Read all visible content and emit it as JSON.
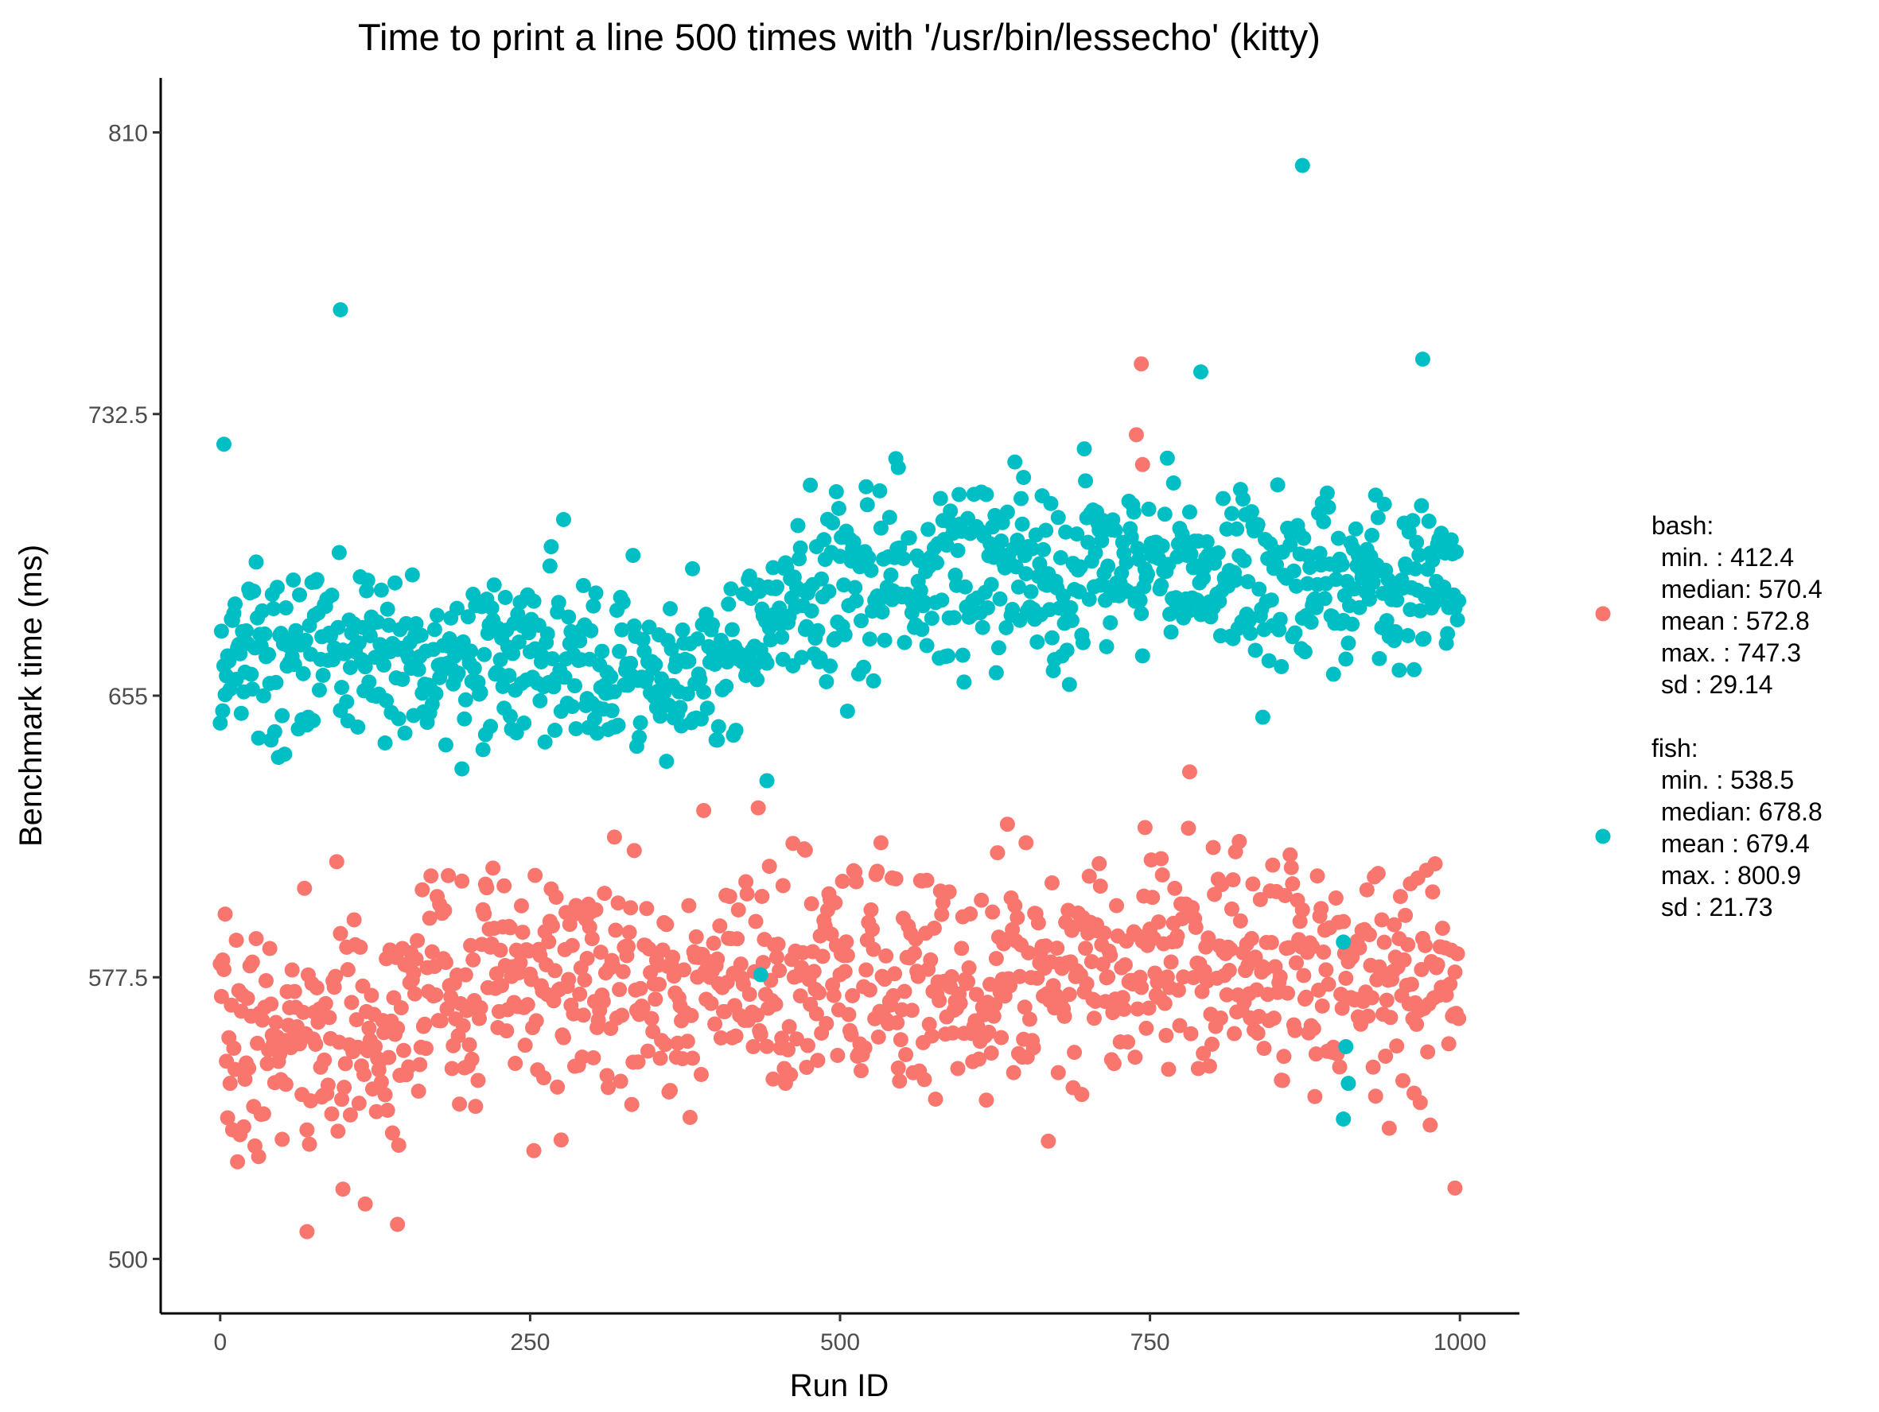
{
  "chart_data": {
    "type": "scatter",
    "title": "Time to print a line 500 times with '/usr/bin/lessecho' (kitty)",
    "xlabel": "Run ID",
    "ylabel": "Benchmark time (ms)",
    "xlim": [
      -48,
      1048
    ],
    "ylim": [
      485,
      825
    ],
    "x_ticks": [
      0,
      250,
      500,
      750,
      1000
    ],
    "y_ticks": [
      500,
      577.5,
      655,
      732.5,
      810
    ],
    "x_tick_labels": [
      "0",
      "250",
      "500",
      "750",
      "1000"
    ],
    "y_tick_labels": [
      "500",
      "577.5",
      "655",
      "732.5",
      "810"
    ],
    "legend_position": "right",
    "series": [
      {
        "name": "bash",
        "color": "#F8766D",
        "n": 1000,
        "seed": 7,
        "stats_lines": [
          "bash:",
          "min.    :  412.4",
          "median:   570.4",
          "mean   :  572.8",
          "max.     :  747.3",
          "sd       :  29.14"
        ],
        "trend": [
          [
            0,
            558
          ],
          [
            130,
            560
          ],
          [
            150,
            576
          ],
          [
            400,
            574
          ],
          [
            600,
            578
          ],
          [
            740,
            583
          ],
          [
            750,
            595
          ],
          [
            760,
            585
          ],
          [
            1000,
            575
          ]
        ],
        "noise_sd": 16,
        "highlight_points": [
          [
            70,
            507.5
          ],
          [
            143,
            509.5
          ],
          [
            743,
            746.3
          ],
          [
            739,
            726.8
          ],
          [
            744,
            718.6
          ],
          [
            996,
            519.5
          ]
        ]
      },
      {
        "name": "fish",
        "color": "#00BFC4",
        "n": 1000,
        "seed": 13,
        "stats_lines": [
          "fish:",
          "min.    :  538.5",
          "median:  678.8",
          "mean   :  679.4",
          "max.     :  800.9",
          "sd       :  21.73"
        ],
        "trend": [
          [
            0,
            667
          ],
          [
            250,
            665
          ],
          [
            350,
            660
          ],
          [
            420,
            664
          ],
          [
            450,
            680
          ],
          [
            550,
            690
          ],
          [
            750,
            690
          ],
          [
            1000,
            686
          ]
        ],
        "noise_sd": 12,
        "highlight_points": [
          [
            873,
            800.9
          ],
          [
            97,
            761.2
          ],
          [
            3,
            724.2
          ],
          [
            970,
            747.6
          ],
          [
            791,
            744.1
          ],
          [
            441,
            631.6
          ],
          [
            906,
            587.2
          ],
          [
            908,
            558.4
          ],
          [
            910,
            548.3
          ],
          [
            906,
            538.5
          ],
          [
            436,
            578.2
          ]
        ]
      }
    ]
  }
}
